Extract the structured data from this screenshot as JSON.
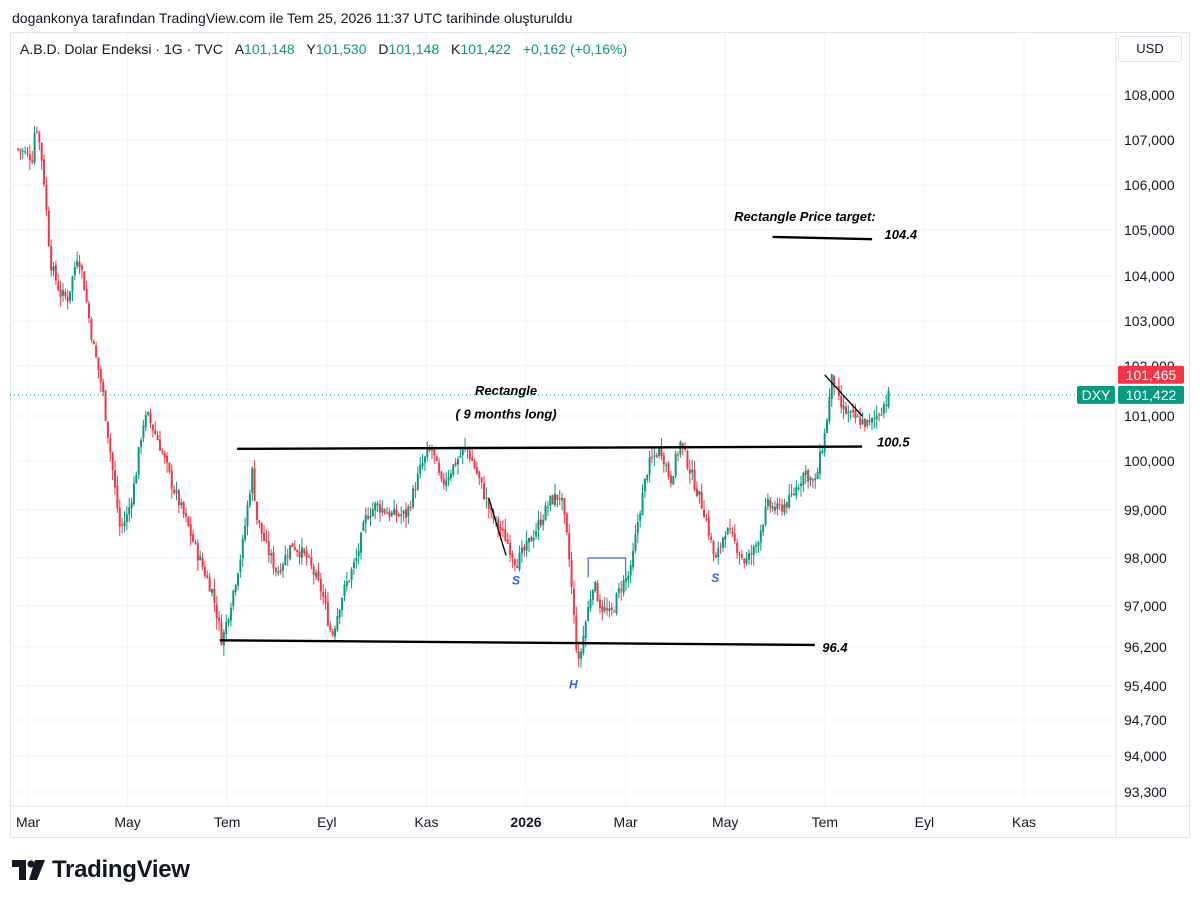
{
  "credit": "dogankonya tarafından TradingView.com ile Tem 25, 2026 11:37 UTC tarihinde oluşturuldu",
  "header": {
    "symbol": "A.B.D. Dolar Endeksi · 1G · TVC",
    "open_label": "A",
    "open": "101,148",
    "high_label": "Y",
    "high": "101,530",
    "low_label": "D",
    "low": "101,148",
    "close_label": "K",
    "close": "101,422",
    "change": "+0,162 (+0,16%)"
  },
  "currency_button": "USD",
  "brand": {
    "name": "TradingView",
    "icon": "tradingview-logo-icon"
  },
  "colors": {
    "up": "#089981",
    "down": "#f23645",
    "grid": "#f0f3fa",
    "annotation": "#000000",
    "pattern_label": "#2962ff"
  },
  "chart_data": {
    "type": "candlestick",
    "title": "A.B.D. Dolar Endeksi · 1G · TVC",
    "ylim": [
      93.0,
      108.9
    ],
    "y_ticks": [
      "108,000",
      "107,000",
      "106,000",
      "105,000",
      "104,000",
      "103,000",
      "102,000",
      "101,000",
      "100,000",
      "99,000",
      "98,000",
      "97,000",
      "96,200",
      "95,400",
      "94,700",
      "94,000",
      "93,300"
    ],
    "y_tick_values": [
      108.0,
      107.0,
      106.0,
      105.0,
      104.0,
      103.0,
      102.0,
      101.0,
      100.0,
      99.0,
      98.0,
      97.0,
      96.2,
      95.4,
      94.7,
      94.0,
      93.3
    ],
    "x_ticks": [
      "Mar",
      "May",
      "Tem",
      "Eyl",
      "Kas",
      "2026",
      "Mar",
      "May",
      "Tem",
      "Eyl",
      "Kas"
    ],
    "x_tick_months": [
      0,
      2,
      4,
      6,
      8,
      10,
      12,
      14,
      16,
      18,
      20
    ],
    "price_labels": [
      {
        "tag": "",
        "value": "101,465",
        "y": 101.465,
        "color": "#f23645"
      },
      {
        "tag": "DXY",
        "value": "101,422",
        "y": 101.422,
        "color": "#089981"
      }
    ],
    "series_anchors": [
      [
        -0.2,
        106.8
      ],
      [
        0.1,
        106.6
      ],
      [
        0.15,
        107.5
      ],
      [
        0.3,
        106.4
      ],
      [
        0.45,
        104.3
      ],
      [
        0.65,
        103.6
      ],
      [
        0.8,
        103.5
      ],
      [
        1.0,
        104.5
      ],
      [
        1.1,
        104.0
      ],
      [
        1.3,
        102.5
      ],
      [
        1.5,
        101.5
      ],
      [
        1.7,
        99.8
      ],
      [
        1.85,
        98.6
      ],
      [
        2.0,
        98.9
      ],
      [
        2.15,
        99.6
      ],
      [
        2.3,
        100.8
      ],
      [
        2.4,
        101.0
      ],
      [
        2.6,
        100.5
      ],
      [
        2.9,
        99.5
      ],
      [
        3.2,
        98.7
      ],
      [
        3.4,
        98.1
      ],
      [
        3.7,
        97.3
      ],
      [
        3.9,
        96.3
      ],
      [
        4.1,
        97.2
      ],
      [
        4.3,
        98.2
      ],
      [
        4.5,
        99.8
      ],
      [
        4.6,
        98.8
      ],
      [
        4.8,
        98.2
      ],
      [
        5.0,
        97.7
      ],
      [
        5.3,
        98.3
      ],
      [
        5.6,
        98.0
      ],
      [
        5.9,
        97.3
      ],
      [
        6.1,
        96.4
      ],
      [
        6.3,
        97.2
      ],
      [
        6.6,
        98.0
      ],
      [
        6.8,
        98.9
      ],
      [
        7.0,
        99.1
      ],
      [
        7.3,
        98.9
      ],
      [
        7.6,
        98.9
      ],
      [
        7.9,
        99.9
      ],
      [
        8.1,
        100.3
      ],
      [
        8.3,
        99.5
      ],
      [
        8.6,
        100.0
      ],
      [
        8.8,
        100.3
      ],
      [
        9.0,
        99.8
      ],
      [
        9.3,
        98.9
      ],
      [
        9.6,
        98.4
      ],
      [
        9.8,
        97.9
      ],
      [
        10.0,
        98.2
      ],
      [
        10.2,
        98.6
      ],
      [
        10.5,
        99.2
      ],
      [
        10.7,
        99.3
      ],
      [
        10.85,
        98.2
      ],
      [
        10.95,
        96.9
      ],
      [
        11.05,
        95.8
      ],
      [
        11.2,
        96.7
      ],
      [
        11.35,
        97.5
      ],
      [
        11.5,
        97.0
      ],
      [
        11.7,
        96.8
      ],
      [
        11.9,
        97.4
      ],
      [
        12.1,
        97.7
      ],
      [
        12.25,
        98.8
      ],
      [
        12.45,
        99.9
      ],
      [
        12.7,
        100.3
      ],
      [
        12.9,
        99.6
      ],
      [
        13.1,
        100.4
      ],
      [
        13.3,
        99.8
      ],
      [
        13.6,
        98.9
      ],
      [
        13.8,
        97.9
      ],
      [
        14.0,
        98.6
      ],
      [
        14.2,
        98.3
      ],
      [
        14.4,
        97.9
      ],
      [
        14.6,
        98.2
      ],
      [
        14.85,
        99.1
      ],
      [
        15.05,
        99.0
      ],
      [
        15.3,
        99.2
      ],
      [
        15.6,
        99.8
      ],
      [
        15.8,
        99.5
      ],
      [
        16.0,
        100.6
      ],
      [
        16.15,
        101.8
      ],
      [
        16.3,
        101.2
      ],
      [
        16.5,
        101.0
      ],
      [
        16.7,
        100.9
      ],
      [
        16.9,
        100.8
      ],
      [
        17.1,
        101.1
      ],
      [
        17.3,
        101.42
      ]
    ],
    "annotations": [
      {
        "type": "text",
        "text": "Rectangle Price target:",
        "x": 15.6,
        "y": 105.2
      },
      {
        "type": "hline",
        "x0": 14.95,
        "x1": 16.95,
        "y0": 104.85,
        "y1": 104.8
      },
      {
        "type": "text",
        "text": "104.4",
        "x": 17.2,
        "y": 104.8
      },
      {
        "type": "text",
        "text": "Rectangle",
        "x": 9.6,
        "y": 101.42
      },
      {
        "type": "text",
        "text": "( 9 months long)",
        "x": 9.6,
        "y": 100.95
      },
      {
        "type": "trendline",
        "x0": 4.2,
        "x1": 16.75,
        "y0": 100.27,
        "y1": 100.32
      },
      {
        "type": "text",
        "text": "100.5",
        "x": 17.05,
        "y": 100.32
      },
      {
        "type": "trendline",
        "x0": 3.85,
        "x1": 15.8,
        "y0": 96.33,
        "y1": 96.24
      },
      {
        "type": "text",
        "text": "96.4",
        "x": 15.95,
        "y": 96.1
      },
      {
        "type": "trendline",
        "x0": 9.25,
        "x1": 9.6,
        "y0": 99.25,
        "y1": 98.05
      },
      {
        "type": "trendline",
        "x0": 16.0,
        "x1": 16.75,
        "y0": 101.82,
        "y1": 101.0
      },
      {
        "type": "box",
        "x0": 11.25,
        "x1": 12.0,
        "y0": 98.0,
        "y1": 97.6
      },
      {
        "type": "pattern_label",
        "text": "S",
        "x": 9.8,
        "y": 97.45
      },
      {
        "type": "pattern_label",
        "text": "H",
        "x": 10.95,
        "y": 95.35
      },
      {
        "type": "pattern_label",
        "text": "S",
        "x": 13.8,
        "y": 97.5
      }
    ]
  }
}
